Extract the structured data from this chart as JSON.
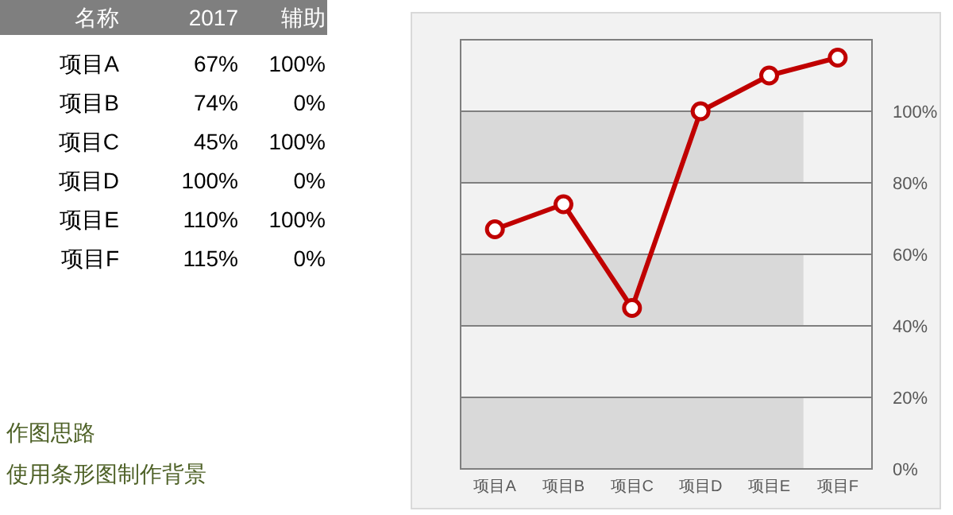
{
  "chart_data": [
    {
      "type": "other",
      "categories": [
        "项目A",
        "项目B",
        "项目C",
        "项目D",
        "项目E",
        "项目F"
      ],
      "series": [
        {
          "name": "2017",
          "values": [
            67,
            74,
            45,
            100,
            110,
            115
          ],
          "value_labels": [
            "67%",
            "74%",
            "45%",
            "100%",
            "110%",
            "115%"
          ]
        },
        {
          "name": "辅助",
          "values": [
            100,
            0,
            100,
            0,
            100,
            0
          ],
          "value_labels": [
            "100%",
            "0%",
            "100%",
            "0%",
            "100%",
            "0%"
          ]
        }
      ],
      "annotations": [
        "名称",
        "作图思路",
        "使用条形图制作背景"
      ]
    },
    {
      "type": "line",
      "categories": [
        "项目A",
        "项目B",
        "项目C",
        "项目D",
        "项目E",
        "项目F"
      ],
      "series": [
        {
          "color": "#c00000",
          "values": [
            67,
            74,
            45,
            100,
            110,
            115
          ]
        }
      ],
      "ylim": [
        0,
        120
      ],
      "yticks": [
        {
          "value": 0,
          "label": "0%"
        },
        {
          "value": 20,
          "label": "20%"
        },
        {
          "value": 40,
          "label": "40%"
        },
        {
          "value": 60,
          "label": "60%"
        },
        {
          "value": 80,
          "label": "80%"
        },
        {
          "value": 100,
          "label": "100%"
        },
        {
          "value": 120,
          "label": null
        }
      ],
      "bands": [
        {
          "axis": "y",
          "from": 0,
          "to": 20,
          "color": "#d9d9d9"
        },
        {
          "axis": "y",
          "from": 40,
          "to": 60,
          "color": "#d9d9d9"
        },
        {
          "axis": "y",
          "from": 80,
          "to": 100,
          "color": "#d9d9d9"
        }
      ],
      "grid": "y",
      "marker": "circle",
      "line_style": "solid"
    }
  ]
}
